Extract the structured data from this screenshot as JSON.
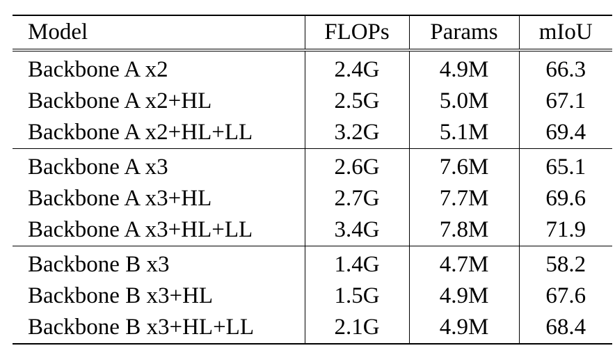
{
  "table": {
    "headers": {
      "model": "Model",
      "flops": "FLOPs",
      "params": "Params",
      "miou": "mIoU"
    },
    "groups": [
      [
        {
          "model": "Backbone A x2",
          "flops": "2.4G",
          "params": "4.9M",
          "miou": "66.3"
        },
        {
          "model": "Backbone A x2+HL",
          "flops": "2.5G",
          "params": "5.0M",
          "miou": "67.1"
        },
        {
          "model": "Backbone A x2+HL+LL",
          "flops": "3.2G",
          "params": "5.1M",
          "miou": "69.4"
        }
      ],
      [
        {
          "model": "Backbone A x3",
          "flops": "2.6G",
          "params": "7.6M",
          "miou": "65.1"
        },
        {
          "model": "Backbone A x3+HL",
          "flops": "2.7G",
          "params": "7.7M",
          "miou": "69.6"
        },
        {
          "model": "Backbone A x3+HL+LL",
          "flops": "3.4G",
          "params": "7.8M",
          "miou": "71.9"
        }
      ],
      [
        {
          "model": "Backbone B x3",
          "flops": "1.4G",
          "params": "4.7M",
          "miou": "58.2"
        },
        {
          "model": "Backbone B x3+HL",
          "flops": "1.5G",
          "params": "4.9M",
          "miou": "67.6"
        },
        {
          "model": "Backbone B x3+HL+LL",
          "flops": "2.1G",
          "params": "4.9M",
          "miou": "68.4"
        }
      ]
    ]
  }
}
